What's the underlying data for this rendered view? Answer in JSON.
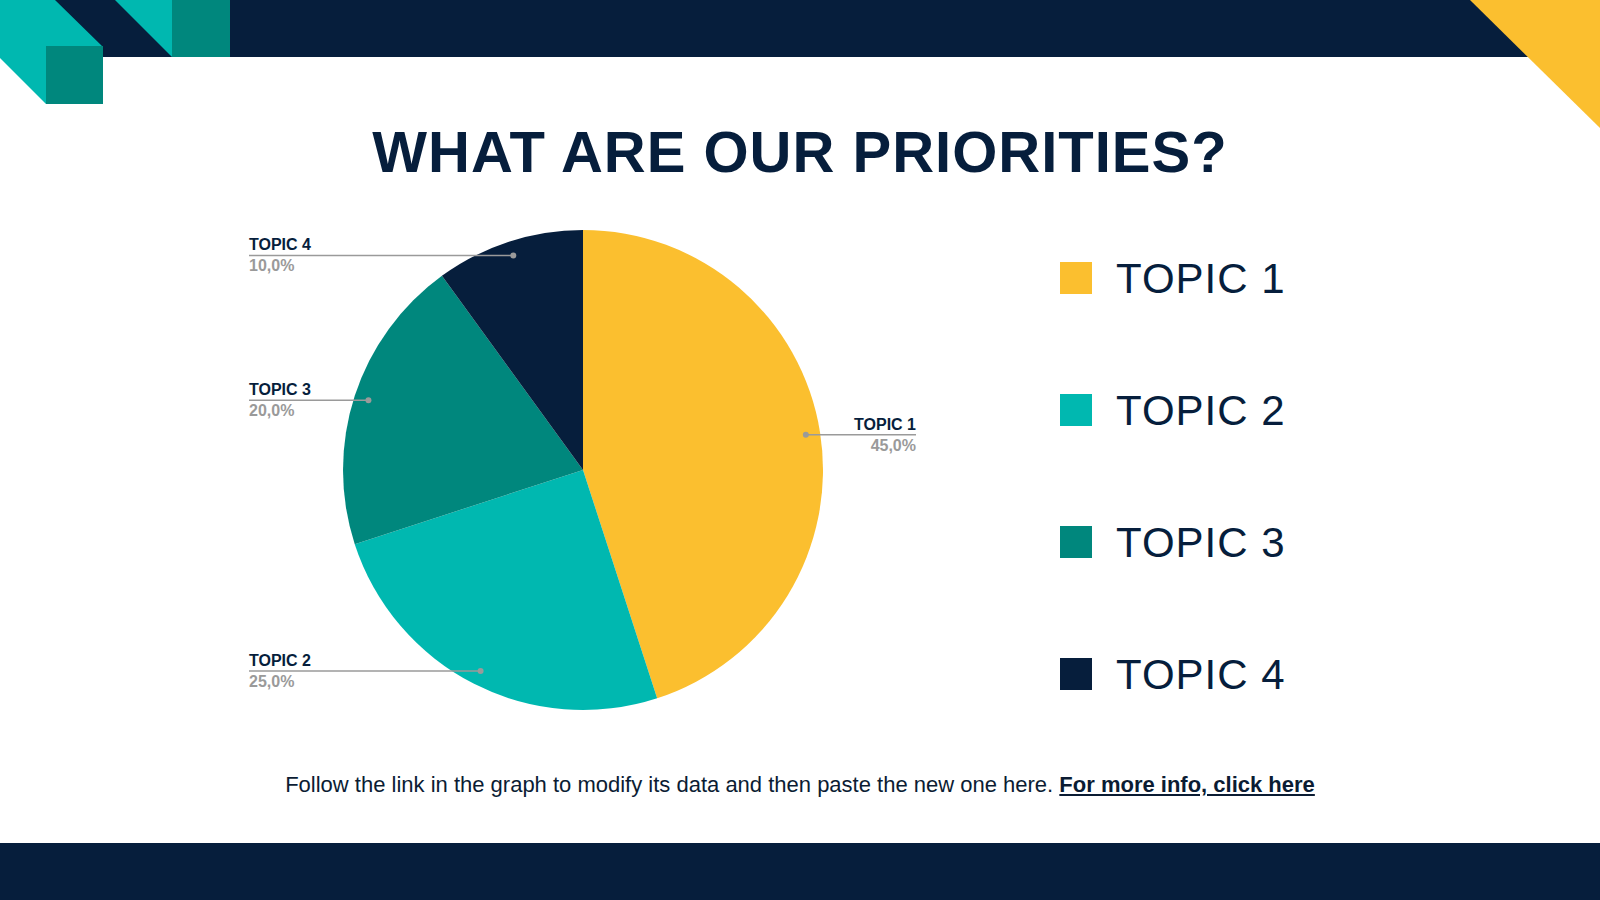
{
  "chart_data": {
    "type": "pie",
    "title": "WHAT ARE OUR PRIORITIES?",
    "categories": [
      "TOPIC 1",
      "TOPIC 2",
      "TOPIC 3",
      "TOPIC 4"
    ],
    "values": [
      45,
      25,
      20,
      10
    ],
    "value_labels": [
      "45,0%",
      "25,0%",
      "20,0%",
      "10,0%"
    ],
    "colors": [
      "#fbbf2f",
      "#00b8b0",
      "#00877d",
      "#061e3c"
    ],
    "data_labels": true,
    "legend": "right"
  },
  "footer": {
    "text": "Follow the link in the graph to modify its data and then paste the new one here.",
    "link": "For more info, click here"
  }
}
